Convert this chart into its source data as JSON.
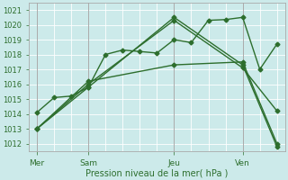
{
  "xlabel": "Pression niveau de la mer( hPa )",
  "bg_color": "#cceaea",
  "grid_color": "#ffffff",
  "line_color": "#2d6e2d",
  "ylim": [
    1011.5,
    1021.5
  ],
  "yticks": [
    1012,
    1013,
    1014,
    1015,
    1016,
    1017,
    1018,
    1019,
    1020,
    1021
  ],
  "xtick_labels": [
    "Mer",
    "Sam",
    "Jeu",
    "Ven"
  ],
  "xtick_positions": [
    1,
    4,
    9,
    13
  ],
  "xlim": [
    0.5,
    15.5
  ],
  "series": [
    {
      "x": [
        1,
        2,
        3,
        4,
        5,
        6,
        7,
        8,
        9,
        10,
        11,
        12,
        13,
        14,
        15
      ],
      "y": [
        1014.1,
        1015.1,
        1015.2,
        1015.8,
        1018.0,
        1018.3,
        1018.2,
        1018.1,
        1019.0,
        1018.8,
        1020.3,
        1020.35,
        1020.5,
        1017.0,
        1018.7
      ],
      "marker": "D",
      "markersize": 2.5,
      "linewidth": 1.0
    },
    {
      "x": [
        1,
        4,
        9,
        13,
        15
      ],
      "y": [
        1013.0,
        1015.8,
        1020.5,
        1017.3,
        1011.8
      ],
      "marker": "D",
      "markersize": 2.5,
      "linewidth": 1.0
    },
    {
      "x": [
        1,
        4,
        9,
        13,
        15
      ],
      "y": [
        1013.0,
        1016.0,
        1020.3,
        1017.1,
        1014.2
      ],
      "marker": "D",
      "markersize": 2.5,
      "linewidth": 1.0
    },
    {
      "x": [
        1,
        4,
        9,
        13,
        15
      ],
      "y": [
        1013.0,
        1016.2,
        1017.3,
        1017.5,
        1012.0
      ],
      "marker": "D",
      "markersize": 2.5,
      "linewidth": 1.0
    }
  ],
  "figsize": [
    3.2,
    2.0
  ],
  "dpi": 100
}
